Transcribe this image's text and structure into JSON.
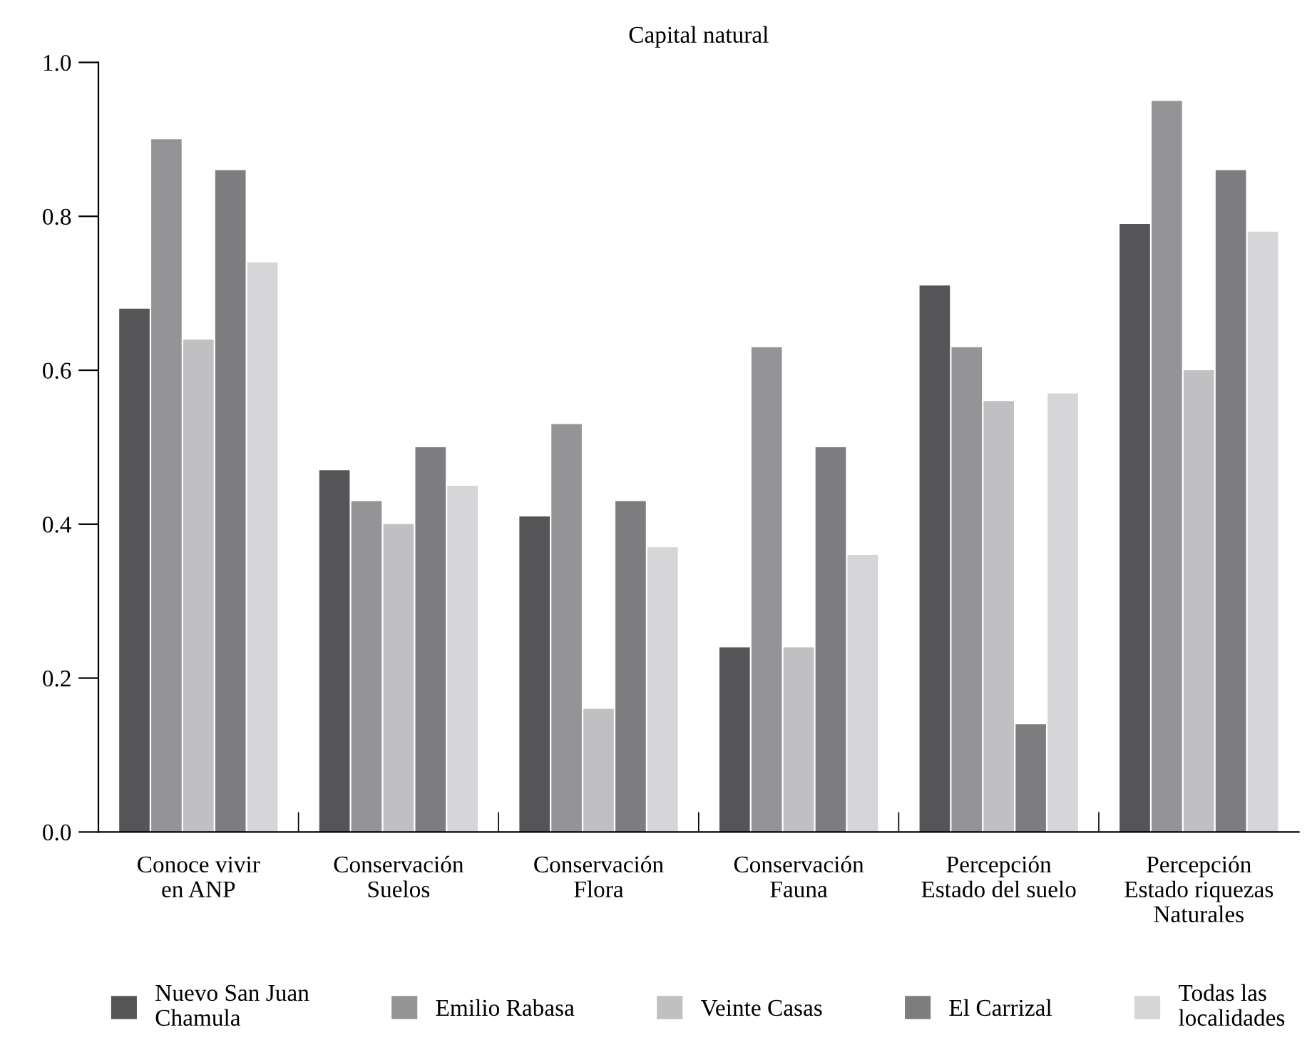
{
  "chart_data": {
    "type": "bar",
    "title": "Capital natural",
    "categories": [
      "Conoce vivir\nen ANP",
      "Conservación\nSuelos",
      "Conservación\nFlora",
      "Conservación\nFauna",
      "Percepción\nEstado del suelo",
      "Percepción\nEstado riquezas\nNaturales"
    ],
    "series": [
      {
        "name": "Nuevo San Juan\nChamula",
        "color": "#555558",
        "values": [
          0.68,
          0.47,
          0.41,
          0.24,
          0.71,
          0.79
        ]
      },
      {
        "name": "Emilio Rabasa",
        "color": "#949497",
        "values": [
          0.9,
          0.43,
          0.53,
          0.63,
          0.63,
          0.95
        ]
      },
      {
        "name": "Veinte Casas",
        "color": "#c0c0c3",
        "values": [
          0.64,
          0.4,
          0.16,
          0.24,
          0.56,
          0.6
        ]
      },
      {
        "name": "El Carrizal",
        "color": "#7d7d80",
        "values": [
          0.86,
          0.5,
          0.43,
          0.5,
          0.14,
          0.86
        ]
      },
      {
        "name": "Todas las\nlocalidades",
        "color": "#d6d6d8",
        "values": [
          0.74,
          0.45,
          0.37,
          0.36,
          0.57,
          0.78
        ]
      }
    ],
    "ylim": [
      0,
      1.0
    ],
    "yticks": [
      {
        "value": 0,
        "label": "0.0"
      },
      {
        "value": 0.2,
        "label": "0.2"
      },
      {
        "value": 0.4,
        "label": "0.4"
      },
      {
        "value": 0.6,
        "label": "0.6"
      },
      {
        "value": 0.8,
        "label": "0.8"
      },
      {
        "value": 1.0,
        "label": "1.0"
      }
    ],
    "grid": false,
    "legend": "bottom"
  }
}
